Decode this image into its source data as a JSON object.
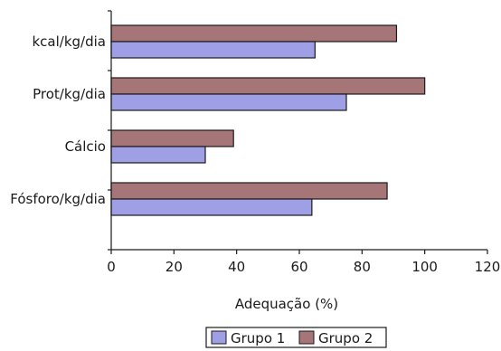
{
  "chart_data": {
    "type": "bar",
    "orientation": "horizontal",
    "categories": [
      "kcal/kg/dia",
      "Prot/kg/dia",
      "Cálcio",
      "Fósforo/kg/dia"
    ],
    "series": [
      {
        "name": "Grupo 1",
        "values": [
          65,
          75,
          30,
          64
        ]
      },
      {
        "name": "Grupo 2",
        "values": [
          91,
          100,
          39,
          88
        ]
      }
    ],
    "xlabel": "Adequação (%)",
    "ylabel": "",
    "xlim": [
      0,
      120
    ],
    "xticks": [
      0,
      20,
      40,
      60,
      80,
      100,
      120
    ],
    "grid": false,
    "legend": "bottom-center"
  },
  "colors": {
    "Grupo 1": "#9f9fe6",
    "Grupo 2": "#a67577",
    "axis": "#1a1a1a"
  }
}
